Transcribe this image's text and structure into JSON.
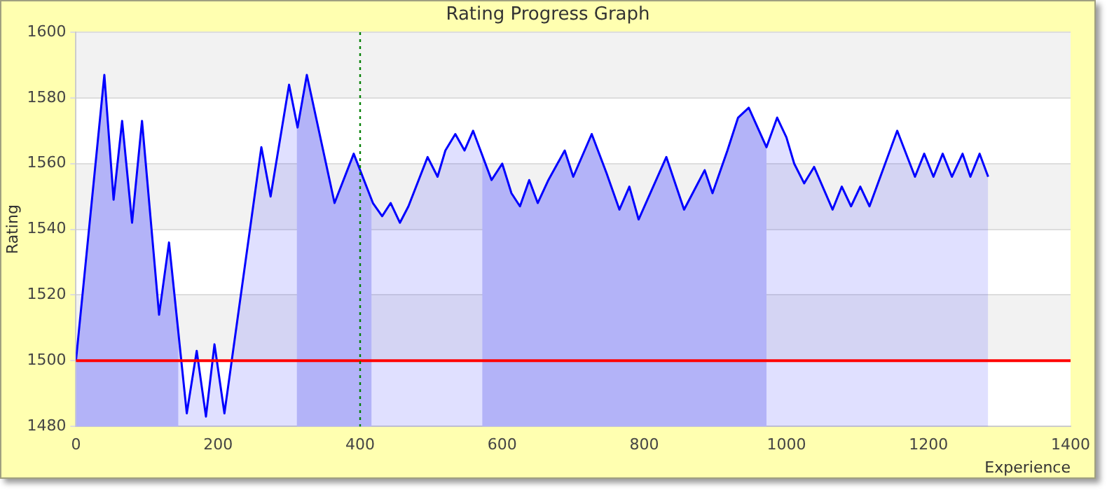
{
  "chart_data": {
    "type": "area",
    "title": "Rating Progress Graph",
    "xlabel": "Experience",
    "ylabel": "Rating",
    "xlim": [
      0,
      1400
    ],
    "xticks": [
      0,
      200,
      400,
      600,
      800,
      1000,
      1200,
      1400
    ],
    "ylim": [
      1480,
      1600
    ],
    "yticks": [
      1480,
      1500,
      1520,
      1540,
      1560,
      1580,
      1600
    ],
    "grid": "y",
    "legend": false,
    "marker": "none",
    "line_style": "solid",
    "series": [
      {
        "color": "#0000ff",
        "x": [
          0,
          40,
          53,
          65,
          79,
          93,
          117,
          131,
          156,
          170,
          183,
          195,
          209,
          261,
          274,
          300,
          312,
          325,
          364,
          391,
          418,
          431,
          443,
          456,
          468,
          495,
          509,
          520,
          534,
          547,
          559,
          585,
          600,
          613,
          625,
          638,
          650,
          665,
          688,
          700,
          726,
          747,
          765,
          779,
          792,
          831,
          856,
          885,
          896,
          917,
          932,
          947,
          972,
          987,
          1000,
          1011,
          1025,
          1039,
          1065,
          1078,
          1091,
          1104,
          1117,
          1156,
          1181,
          1194,
          1207,
          1220,
          1233,
          1248,
          1259,
          1272,
          1284
        ],
        "values": [
          1500,
          1587,
          1549,
          1573,
          1542,
          1573,
          1514,
          1536,
          1484,
          1503,
          1483,
          1505,
          1484,
          1565,
          1550,
          1584,
          1571,
          1587,
          1548,
          1563,
          1548,
          1544,
          1548,
          1542,
          1547,
          1562,
          1556,
          1564,
          1569,
          1564,
          1570,
          1555,
          1560,
          1551,
          1547,
          1555,
          1548,
          1555,
          1564,
          1556,
          1569,
          1557,
          1546,
          1553,
          1543,
          1562,
          1546,
          1558,
          1551,
          1564,
          1574,
          1577,
          1565,
          1574,
          1568,
          1560,
          1554,
          1559,
          1546,
          1553,
          1547,
          1553,
          1547,
          1570,
          1556,
          1563,
          1556,
          1563,
          1556,
          1563,
          1556,
          1563,
          1556
        ]
      }
    ],
    "bands": [
      {
        "axis": "x",
        "from": 0,
        "to": 144,
        "color": "#ccccf8"
      },
      {
        "axis": "x",
        "from": 311,
        "to": 416,
        "color": "#ccccf8"
      },
      {
        "axis": "x",
        "from": 572,
        "to": 972,
        "color": "#ccccf8"
      }
    ],
    "ref_lines": [
      {
        "axis": "y",
        "value": 1500,
        "color": "#ff0000",
        "line_style": "solid"
      },
      {
        "axis": "x",
        "value": 400,
        "color": "#008000",
        "line_style": "dotted"
      }
    ]
  }
}
